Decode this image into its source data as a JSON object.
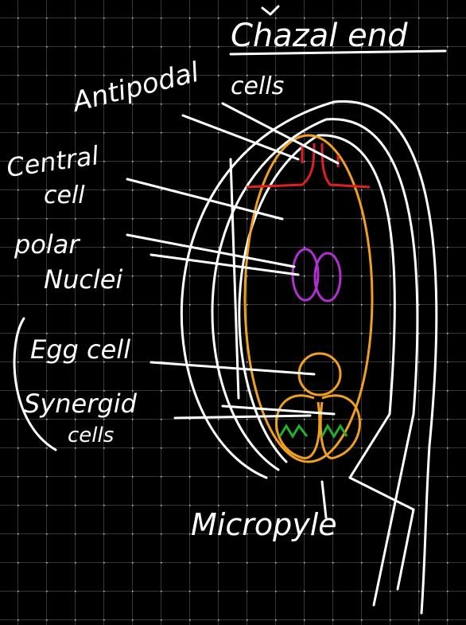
{
  "labels": [
    {
      "lines": [
        "Chazal end"
      ]
    },
    {
      "lines": [
        "Antipodal",
        "cells"
      ]
    },
    {
      "lines": [
        "Central",
        "cell"
      ]
    },
    {
      "lines": [
        "polar",
        "Nuclei"
      ]
    },
    {
      "lines": [
        "Egg cell"
      ]
    },
    {
      "lines": [
        "Synergid",
        "cells"
      ]
    },
    {
      "lines": [
        "Micropyle"
      ]
    }
  ]
}
